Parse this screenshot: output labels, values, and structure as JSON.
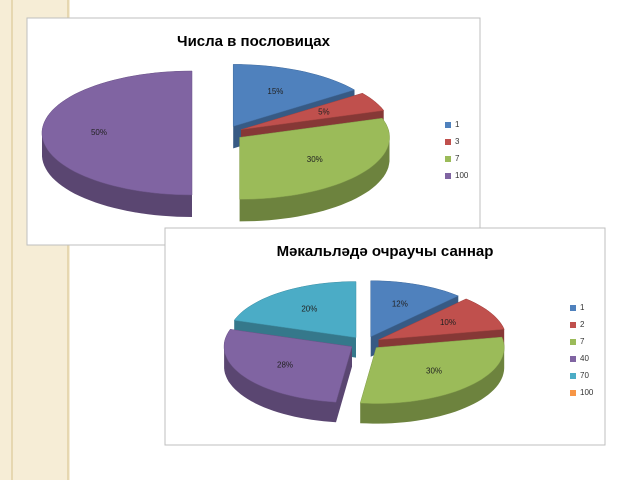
{
  "chart_data": [
    {
      "type": "pie",
      "title": "Числа в пословицах",
      "categories": [
        "1",
        "3",
        "7",
        "100"
      ],
      "values": [
        15,
        5,
        30,
        50
      ],
      "value_labels": [
        "15%",
        "5%",
        "30%",
        "50%"
      ],
      "colors": [
        "#4f81bd",
        "#c0504d",
        "#9bbb59",
        "#8064a2"
      ]
    },
    {
      "type": "pie",
      "title": "Мәкальләдә очраучы саннар",
      "categories": [
        "1",
        "2",
        "7",
        "40",
        "70",
        "100"
      ],
      "values": [
        12,
        10,
        30,
        28,
        20,
        0
      ],
      "value_labels": [
        "12%",
        "10%",
        "30%",
        "28%",
        "20%",
        null
      ],
      "colors": [
        "#4f81bd",
        "#c0504d",
        "#9bbb59",
        "#8064a2",
        "#4bacc6",
        "#f79646"
      ]
    }
  ]
}
